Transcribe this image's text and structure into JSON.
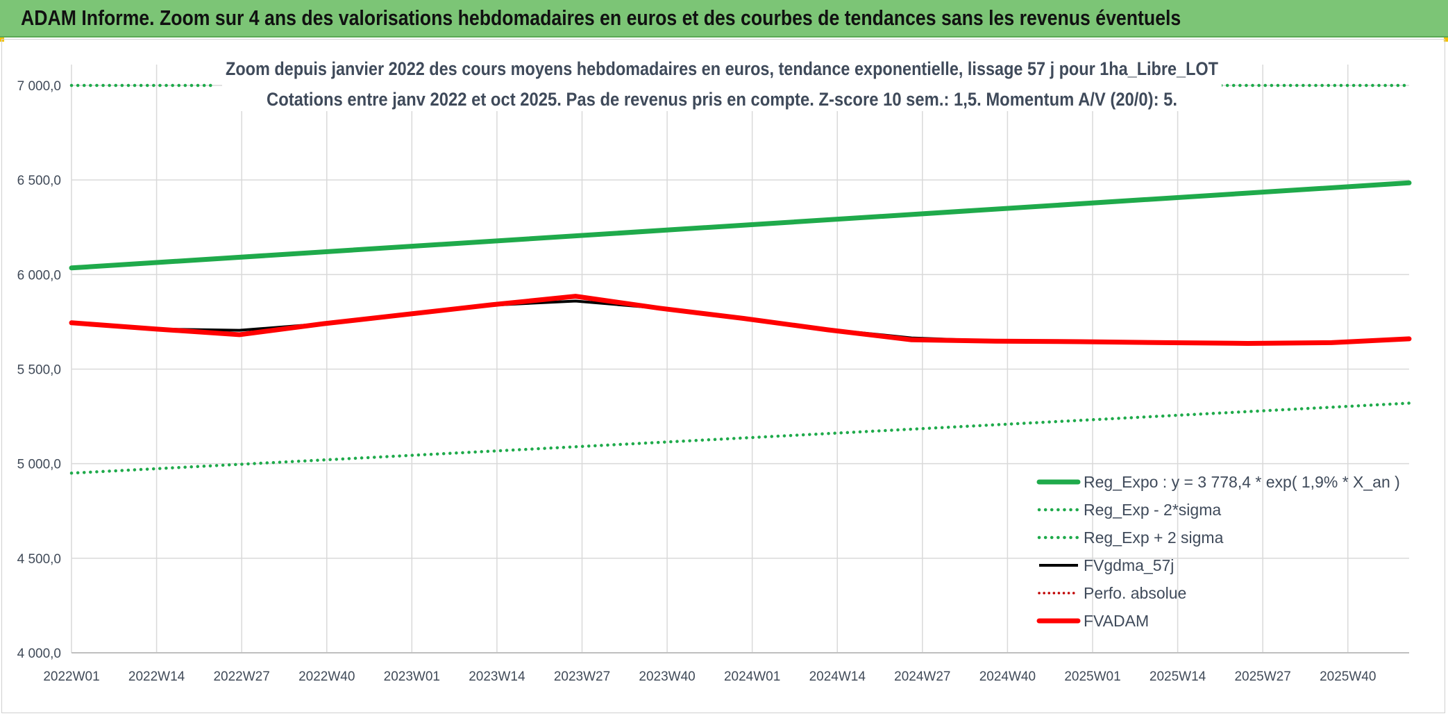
{
  "header": {
    "title": "ADAM Informe. Zoom sur 4 ans des valorisations hebdomadaires en euros et des courbes de tendances sans les revenus éventuels"
  },
  "colors": {
    "banner": "#7CC576",
    "green": "#1FAA4B",
    "black": "#000000",
    "red": "#FF0000",
    "grid": "#d9d9d9"
  },
  "chart_data": {
    "type": "line",
    "title_line1": "Zoom depuis janvier 2022 des cours moyens hebdomadaires en euros, tendance exponentielle, lissage 57 j pour 1ha_Libre_LOT",
    "title_line2": "Cotations entre janv 2022 et oct 2025. Pas de revenus pris en compte. Z-score 10 sem.: 1,5. Momentum A/V (20/0): 5.",
    "ylim": [
      4000,
      7000
    ],
    "y_ticks": [
      "4 000,0",
      "4 500,0",
      "5 000,0",
      "5 500,0",
      "6 000,0",
      "6 500,0",
      "7 000,0"
    ],
    "y_tick_values": [
      4000,
      4500,
      5000,
      5500,
      6000,
      6500,
      7000
    ],
    "x_ticks": [
      "2022W01",
      "2022W14",
      "2022W27",
      "2022W40",
      "2023W01",
      "2023W14",
      "2023W27",
      "2023W40",
      "2024W01",
      "2024W14",
      "2024W27",
      "2024W40",
      "2025W01",
      "2025W14",
      "2025W27",
      "2025W40"
    ],
    "x_range": [
      0,
      207
    ],
    "legend_position": "bottom-right",
    "series": [
      {
        "name": "Reg_Expo : y = 3 778,4 * exp( 1,9% *  X_an )",
        "style": "solid-thick",
        "color": "#1FAA4B",
        "x": [
          0,
          207
        ],
        "values": [
          6035,
          6485
        ]
      },
      {
        "name": "Reg_Exp - 2*sigma",
        "style": "dotted",
        "color": "#1FAA4B",
        "x": [
          0,
          207
        ],
        "values": [
          4950,
          5320
        ]
      },
      {
        "name": "Reg_Exp + 2 sigma",
        "style": "dotted",
        "color": "#1FAA4B",
        "x": [
          0,
          22,
          173,
          207
        ],
        "values": [
          7000,
          7000,
          7000,
          7000
        ],
        "segments": [
          [
            0,
            22
          ],
          [
            173,
            207
          ]
        ]
      },
      {
        "name": "FVgdma_57j",
        "style": "solid",
        "color": "#000000",
        "x": [
          0,
          13,
          26,
          39,
          52,
          65,
          78,
          91,
          104,
          117,
          130,
          143,
          156,
          169,
          182,
          195,
          207
        ],
        "values": [
          5745,
          5712,
          5705,
          5740,
          5790,
          5838,
          5860,
          5822,
          5768,
          5710,
          5665,
          5648,
          5645,
          5640,
          5636,
          5640,
          5660
        ]
      },
      {
        "name": "Perfo. absolue",
        "style": "dotted-red",
        "color": "#C00000",
        "x": [],
        "values": []
      },
      {
        "name": "FVADAM",
        "style": "solid-thick",
        "color": "#FF0000",
        "x": [
          0,
          13,
          26,
          39,
          52,
          65,
          78,
          91,
          104,
          117,
          130,
          143,
          156,
          169,
          182,
          195,
          207
        ],
        "values": [
          5745,
          5712,
          5682,
          5740,
          5790,
          5840,
          5885,
          5822,
          5768,
          5708,
          5655,
          5648,
          5645,
          5640,
          5636,
          5640,
          5660
        ]
      }
    ]
  }
}
